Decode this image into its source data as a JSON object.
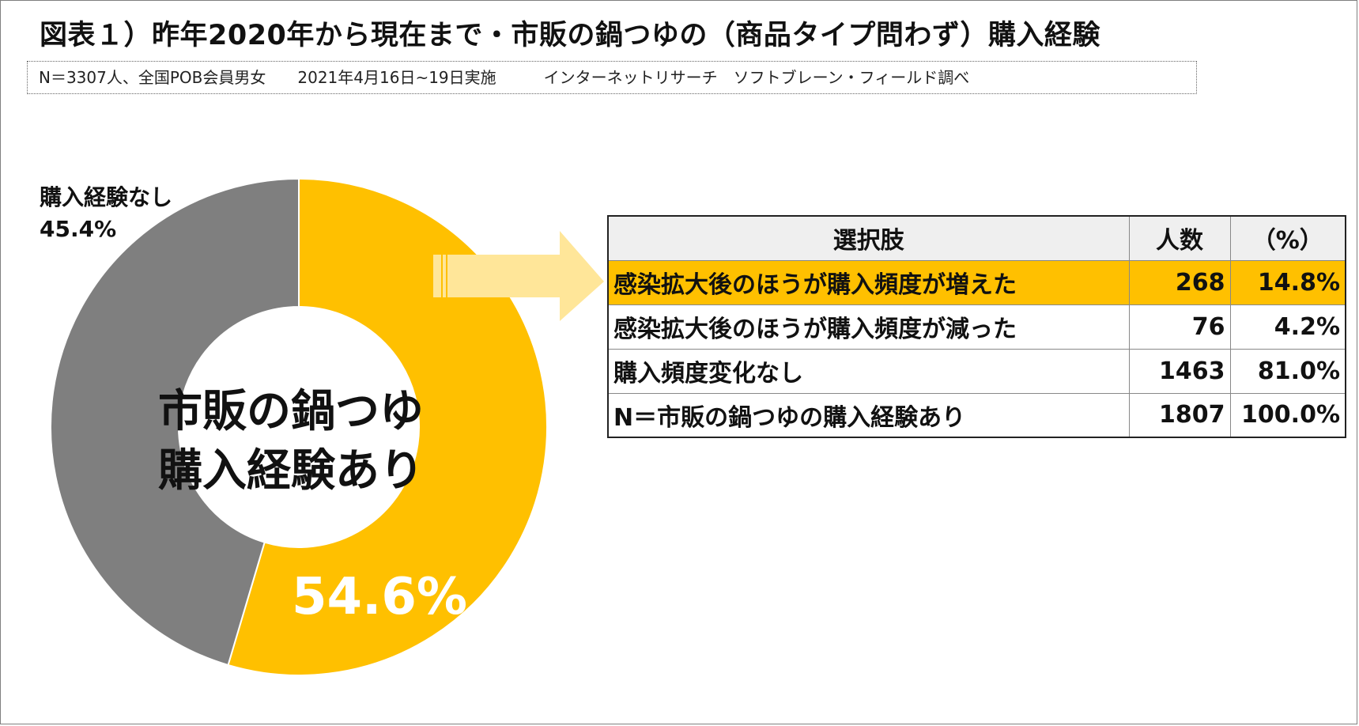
{
  "title": "図表１）昨年2020年から現在まで・市販の鍋つゆの（商品タイプ問わず）購入経験",
  "subtitle": "N＝3307人、全国POB会員男女　　2021年4月16日~19日実施　　　インターネットリサーチ　ソフトブレーン・フィールド調べ",
  "chart_data": {
    "type": "pie",
    "slices": [
      {
        "name": "市販の鍋つゆ購入経験あり",
        "value": 54.6,
        "value_label": "54.6%",
        "color": "#ffc000"
      },
      {
        "name": "購入経験なし",
        "value": 45.4,
        "value_label": "45.4%",
        "color": "#7f7f7f"
      }
    ],
    "center_label_lines": [
      "市販の鍋つゆ",
      "購入経験あり"
    ],
    "table": {
      "headers": [
        "選択肢",
        "人数",
        "（%）"
      ],
      "rows": [
        {
          "label": "感染拡大後のほうが購入頻度が増えた",
          "count": "268",
          "pct": "14.8%",
          "highlight": true
        },
        {
          "label": "感染拡大後のほうが購入頻度が減った",
          "count": "76",
          "pct": "4.2%",
          "highlight": false
        },
        {
          "label": "購入頻度変化なし",
          "count": "1463",
          "pct": "81.0%",
          "highlight": false
        },
        {
          "label": "N＝市販の鍋つゆの購入経験あり",
          "count": "1807",
          "pct": "100.0%",
          "highlight": false
        }
      ],
      "highlight_color": "#ffc000"
    },
    "arrow_color": "#ffe699"
  }
}
